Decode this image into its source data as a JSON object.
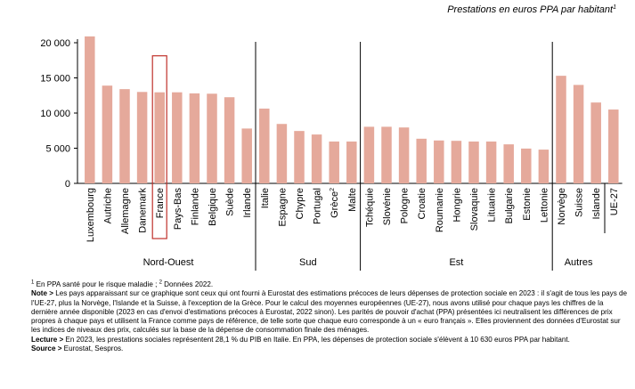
{
  "chart_data": {
    "type": "bar",
    "unit_label": "Prestations en euros PPA par habitant",
    "unit_label_sup": "1",
    "categories": [
      "Luxembourg",
      "Autriche",
      "Allemagne",
      "Danemark",
      "France",
      "Pays-Bas",
      "Finlande",
      "Belgique",
      "Suède",
      "Irlande",
      "Italie",
      "Espagne",
      "Chypre",
      "Portugal",
      "Grèce",
      "Malte",
      "Tchéquie",
      "Slovénie",
      "Pologne",
      "Croatie",
      "Roumanie",
      "Hongrie",
      "Slovaquie",
      "Lituanie",
      "Bulgarie",
      "Estonie",
      "Lettonie",
      "Norvège",
      "Suisse",
      "Islande",
      "UE-27"
    ],
    "category_sups": {
      "Grèce": "2"
    },
    "values": [
      20900,
      13900,
      13400,
      13000,
      12950,
      12950,
      12800,
      12750,
      12250,
      7800,
      10630,
      8450,
      7450,
      6950,
      5950,
      5950,
      8050,
      8050,
      7950,
      6350,
      6100,
      6050,
      5950,
      5950,
      5550,
      4950,
      4800,
      15300,
      14000,
      11500,
      10500
    ],
    "highlight": "France",
    "ylim": [
      0,
      20000
    ],
    "yticks": [
      0,
      5000,
      10000,
      15000,
      20000
    ],
    "ytick_labels": [
      "0",
      "5 000",
      "10 000",
      "15 000",
      "20 000"
    ],
    "groups": [
      {
        "label": "Nord-Ouest",
        "start": 0,
        "end": 9
      },
      {
        "label": "Sud",
        "start": 10,
        "end": 15
      },
      {
        "label": "Est",
        "start": 16,
        "end": 26
      },
      {
        "label": "Autres",
        "start": 27,
        "end": 29
      }
    ],
    "bar_color": "#e5a99b",
    "highlight_color": "#c0312b",
    "grid": false
  },
  "notes": {
    "footnote_sup1": "1",
    "footnote_1": " En PPA santé pour le risque maladie ; ",
    "footnote_sup2": "2",
    "footnote_2": " Données 2022.",
    "note_label": "Note >",
    "note_text": " Les pays apparaissant sur ce graphique sont ceux qui ont fourni à Eurostat des estimations précoces de leurs dépenses de protection sociale en 2023 : il s'agit de tous les pays de l'UE-27, plus la Norvège, l'Islande et la Suisse, à l'exception de la Grèce. Pour le calcul des moyennes européennes (UE-27), nous avons utilisé pour chaque pays les chiffres de la dernière année disponible (2023 en cas d'envoi d'estimations précoces à Eurostat, 2022 sinon). Les parités de pouvoir d'achat (PPA) présentées ici neutralisent les différences de prix propres à chaque pays et utilisent la France comme pays de référence, de telle sorte que chaque euro corresponde à un « euro français ». Elles proviennent des données d'Eurostat sur les indices de niveaux des prix, calculés sur la base de la dépense de consommation finale des ménages.",
    "lecture_label": "Lecture >",
    "lecture_text": " En 2023, les prestations sociales représentent 28,1 % du PIB en Italie. En PPA, les dépenses de protection sociale s'élèvent à 10 630 euros PPA par habitant.",
    "source_label": "Source >",
    "source_text": " Eurostat, Sespros."
  }
}
